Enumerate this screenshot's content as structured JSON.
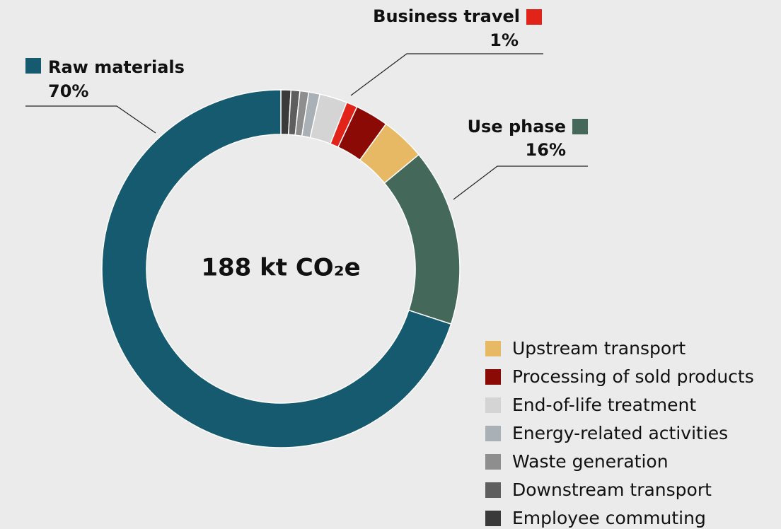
{
  "chart_data": {
    "type": "pie",
    "center_text": "188 kt CO₂e",
    "categories": [
      "Employee commuting",
      "Downstream transport",
      "Waste generation",
      "Energy-related activities",
      "End-of-life treatment",
      "Business travel",
      "Processing of sold products",
      "Upstream transport",
      "Use phase",
      "Raw materials"
    ],
    "values": [
      0.9,
      0.8,
      0.8,
      1,
      2.5,
      1,
      3,
      4,
      16,
      70
    ],
    "value_labels": [
      null,
      null,
      null,
      null,
      null,
      "1%",
      null,
      null,
      "16%",
      "70%"
    ],
    "colors": [
      "#3a3a3a",
      "#5e5e5e",
      "#8e8e8e",
      "#a9b1b7",
      "#d4d4d4",
      "#e2231a",
      "#8b0a06",
      "#e8b964",
      "#44695a",
      "#155a6e"
    ]
  }
}
